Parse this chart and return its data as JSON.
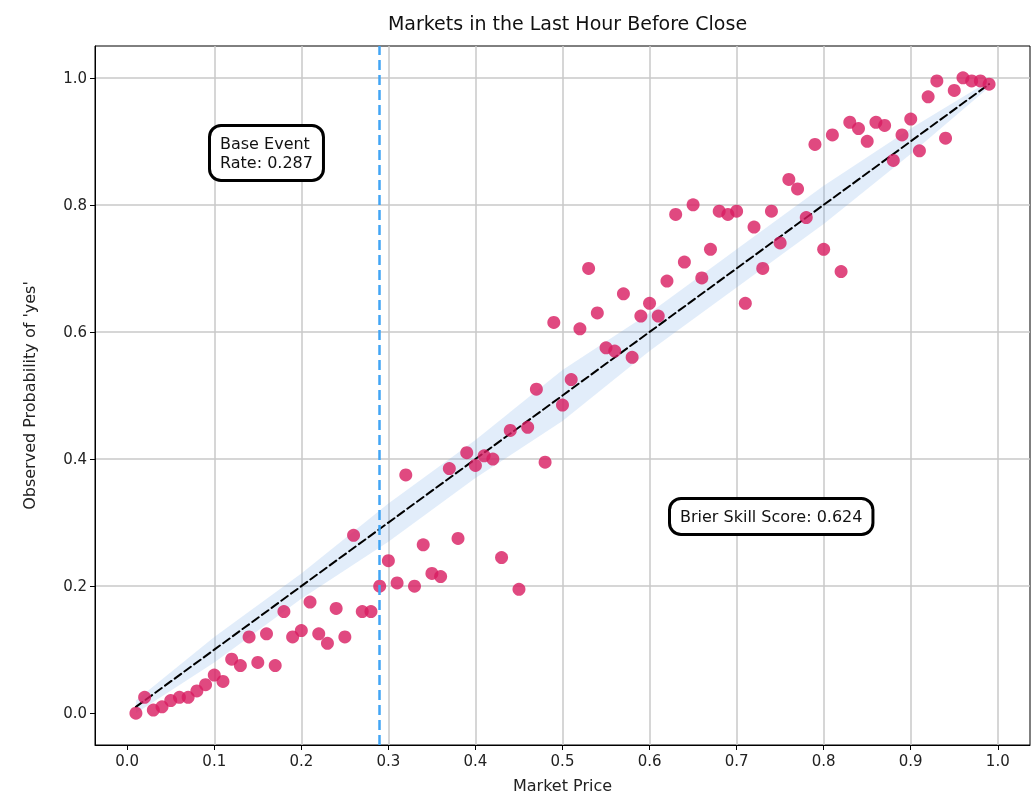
{
  "chart_data": {
    "type": "scatter",
    "title": "Markets in the Last Hour Before Close",
    "xlabel": "Market Price",
    "ylabel": "Observed Probability of 'yes'",
    "xlim": [
      -0.037,
      1.037
    ],
    "ylim": [
      -0.05,
      1.05
    ],
    "xticks": [
      {
        "value": 0,
        "label": "0.0"
      },
      {
        "value": 0.1,
        "label": "0.1"
      },
      {
        "value": 0.2,
        "label": "0.2"
      },
      {
        "value": 0.3,
        "label": "0.3"
      },
      {
        "value": 0.4,
        "label": "0.4"
      },
      {
        "value": 0.5,
        "label": "0.5"
      },
      {
        "value": 0.6,
        "label": "0.6"
      },
      {
        "value": 0.7,
        "label": "0.7"
      },
      {
        "value": 0.8,
        "label": "0.8"
      },
      {
        "value": 0.9,
        "label": "0.9"
      },
      {
        "value": 1,
        "label": "1.0"
      }
    ],
    "yticks": [
      {
        "value": 0,
        "label": "0.0"
      },
      {
        "value": 0.2,
        "label": "0.2"
      },
      {
        "value": 0.4,
        "label": "0.4"
      },
      {
        "value": 0.6,
        "label": "0.6"
      },
      {
        "value": 0.8,
        "label": "0.8"
      },
      {
        "value": 1,
        "label": "1.0"
      }
    ],
    "grid": true,
    "marker": "circle",
    "series": [
      {
        "type": "line",
        "color": "#000000",
        "line_style": "dashed",
        "marker": "none",
        "x": [
          0.01,
          0.1,
          0.2,
          0.3,
          0.4,
          0.5,
          0.6,
          0.7,
          0.8,
          0.9,
          0.99
        ],
        "values": [
          0.01,
          0.1,
          0.2,
          0.3,
          0.4,
          0.5,
          0.6,
          0.7,
          0.8,
          0.9,
          0.99
        ],
        "lower": [
          0.0,
          0.08,
          0.18,
          0.27,
          0.37,
          0.46,
          0.57,
          0.67,
          0.77,
          0.88,
          0.985
        ],
        "upper": [
          0.02,
          0.12,
          0.22,
          0.33,
          0.43,
          0.54,
          0.63,
          0.73,
          0.83,
          0.92,
          0.995
        ]
      },
      {
        "color": "#d81b60",
        "x": [
          0.01,
          0.02,
          0.03,
          0.04,
          0.05,
          0.06,
          0.07,
          0.08,
          0.09,
          0.1,
          0.11,
          0.12,
          0.13,
          0.14,
          0.15,
          0.16,
          0.17,
          0.18,
          0.19,
          0.2,
          0.21,
          0.22,
          0.23,
          0.24,
          0.25,
          0.26,
          0.27,
          0.28,
          0.29,
          0.3,
          0.31,
          0.32,
          0.33,
          0.34,
          0.35,
          0.36,
          0.37,
          0.38,
          0.39,
          0.4,
          0.41,
          0.42,
          0.43,
          0.44,
          0.45,
          0.46,
          0.47,
          0.48,
          0.49,
          0.5,
          0.51,
          0.52,
          0.53,
          0.54,
          0.55,
          0.56,
          0.57,
          0.58,
          0.59,
          0.6,
          0.61,
          0.62,
          0.63,
          0.64,
          0.65,
          0.66,
          0.67,
          0.68,
          0.69,
          0.7,
          0.71,
          0.72,
          0.73,
          0.74,
          0.75,
          0.76,
          0.77,
          0.78,
          0.79,
          0.8,
          0.81,
          0.82,
          0.83,
          0.84,
          0.85,
          0.86,
          0.87,
          0.88,
          0.89,
          0.9,
          0.91,
          0.92,
          0.93,
          0.94,
          0.95,
          0.96,
          0.97,
          0.98,
          0.99
        ],
        "values": [
          0.0,
          0.025,
          0.005,
          0.01,
          0.02,
          0.025,
          0.025,
          0.035,
          0.045,
          0.06,
          0.05,
          0.085,
          0.075,
          0.12,
          0.08,
          0.125,
          0.075,
          0.16,
          0.12,
          0.13,
          0.175,
          0.125,
          0.11,
          0.165,
          0.12,
          0.28,
          0.16,
          0.16,
          0.2,
          0.24,
          0.205,
          0.375,
          0.2,
          0.265,
          0.22,
          0.215,
          0.385,
          0.275,
          0.41,
          0.39,
          0.405,
          0.4,
          0.245,
          0.445,
          0.195,
          0.45,
          0.51,
          0.395,
          0.615,
          0.485,
          0.525,
          0.605,
          0.7,
          0.63,
          0.575,
          0.57,
          0.66,
          0.56,
          0.625,
          0.645,
          0.625,
          0.68,
          0.785,
          0.71,
          0.8,
          0.685,
          0.73,
          0.79,
          0.785,
          0.79,
          0.645,
          0.765,
          0.7,
          0.79,
          0.74,
          0.84,
          0.825,
          0.78,
          0.895,
          0.73,
          0.91,
          0.695,
          0.93,
          0.92,
          0.9,
          0.93,
          0.925,
          0.87,
          0.91,
          0.935,
          0.885,
          0.97,
          0.995,
          0.905,
          0.98,
          1.0,
          0.995,
          0.995,
          0.99
        ]
      }
    ],
    "ref_lines": [
      {
        "axis": "x",
        "value": 0.287,
        "color": "#42a5f5",
        "line_style": "dashed"
      }
    ],
    "annotations": [
      "Base Event\nRate: 0.287",
      "Brier Skill Score: 0.624"
    ]
  }
}
